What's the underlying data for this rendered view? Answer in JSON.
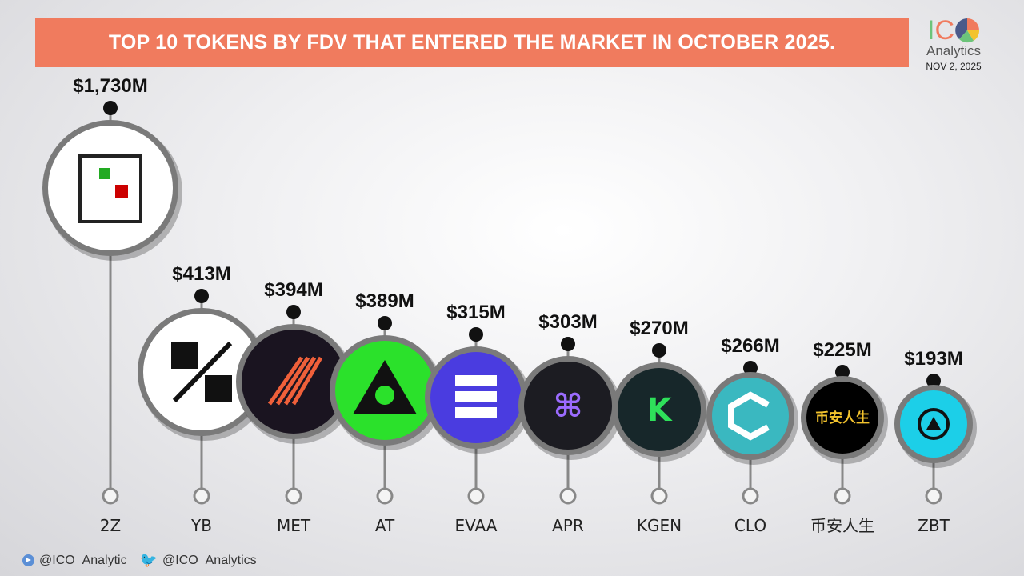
{
  "header": {
    "title": "TOP 10 TOKENS BY FDV THAT ENTERED THE MARKET IN OCTOBER 2025."
  },
  "logo": {
    "ic": "IC",
    "analytics": "Analytics",
    "date": "NOV 2, 2025",
    "colors": {
      "i": "#6cc47a",
      "c": "#f07b5e",
      "pie": [
        "#4a5a8a",
        "#f07b5e",
        "#f3c32d",
        "#6cc47a"
      ]
    }
  },
  "footer": {
    "telegram": "@ICO_Analytic",
    "twitter": "@ICO_Analytics"
  },
  "chart_data": {
    "type": "bar",
    "title": "TOP 10 TOKENS BY FDV THAT ENTERED THE MARKET IN OCTOBER 2025.",
    "unit": "$M",
    "categories": [
      "2Z",
      "YB",
      "MET",
      "AT",
      "EVAA",
      "APR",
      "KGEN",
      "CLO",
      "币安人生",
      "ZBT"
    ],
    "values": [
      1730,
      413,
      394,
      389,
      315,
      303,
      270,
      266,
      225,
      193
    ],
    "value_labels": [
      "$1,730M",
      "$413M",
      "$394M",
      "$389M",
      "$315M",
      "$303M",
      "$270M",
      "$266M",
      "$225M",
      "$193M"
    ],
    "icon_colors": [
      "#ffffff",
      "#ffffff",
      "#1a1420",
      "#2be12b",
      "#4a3ce0",
      "#1c1c22",
      "#17272a",
      "#3ab8c0",
      "#000000",
      "#1ccfe8"
    ],
    "icon_glyph_text": [
      "",
      "",
      "",
      "",
      "",
      "⌘",
      "K",
      "",
      "币安人生",
      ""
    ]
  }
}
